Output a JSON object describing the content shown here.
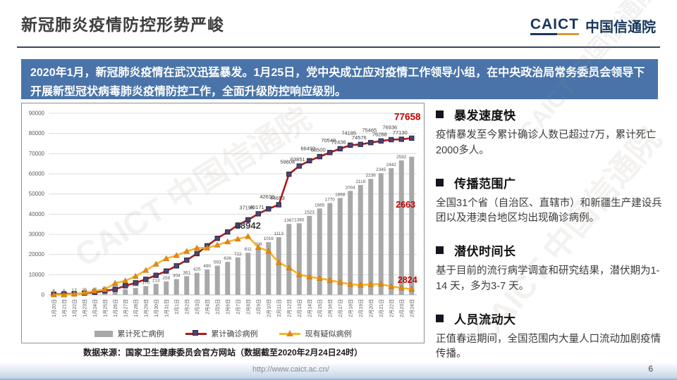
{
  "header": {
    "title": "新冠肺炎疫情防控形势严峻",
    "logo_caict": "CAICT",
    "logo_cn": "中国信通院"
  },
  "banner": {
    "text": "2020年1月，新冠肺炎疫情在武汉迅猛暴发。1月25日，党中央成立应对疫情工作领导小组，在中央政治局常务委员会领导下开展新型冠状病毒肺炎疫情防控工作，全面升级防控响应级别。"
  },
  "bullets": [
    {
      "heading": "暴发速度快",
      "body": "疫情暴发至今累计确诊人数已超过7万，累计死亡2000多人。"
    },
    {
      "heading": "传播范围广",
      "body": "全国31个省（自治区、直辖市）和新疆生产建设兵团以及港澳台地区均出现确诊病例。"
    },
    {
      "heading": "潜伏时间长",
      "body": "基于目前的流行病学调查和研究结果，潜伏期为1-14 天，多为3-7 天。"
    },
    {
      "heading": "人员流动大",
      "body": "正值春运期间，全国范围内大量人口流动加剧疫情传播。"
    }
  ],
  "chart_data": {
    "type": "combo",
    "categories": [
      "1月20日",
      "1月21日",
      "1月22日",
      "1月23日",
      "1月24日",
      "1月25日",
      "1月26日",
      "1月27日",
      "1月28日",
      "1月29日",
      "1月30日",
      "1月31日",
      "2月1日",
      "2月2日",
      "2月3日",
      "2月4日",
      "2月5日",
      "2月6日",
      "2月7日",
      "2月8日",
      "2月9日",
      "2月10日",
      "2月11日",
      "2月12日",
      "2月13日",
      "2月14日",
      "2月15日",
      "2月16日",
      "2月17日",
      "2月18日",
      "2月19日",
      "2月20日",
      "2月21日",
      "2月22日",
      "2月23日",
      "2月24日"
    ],
    "series": [
      {
        "name": "累计死亡病例",
        "kind": "bar",
        "axis": "secondary",
        "color": "#a8a8a8",
        "values": [
          6,
          9,
          17,
          25,
          41,
          56,
          80,
          106,
          132,
          170,
          213,
          259,
          304,
          361,
          425,
          490,
          563,
          636,
          722,
          811,
          908,
          1016,
          1113,
          1367,
          1380,
          1523,
          1665,
          1770,
          1868,
          2004,
          2118,
          2236,
          2345,
          2442,
          2592,
          2663
        ]
      },
      {
        "name": "累计确诊病例",
        "kind": "line",
        "marker": "square",
        "axis": "primary",
        "color": "#ae1a17",
        "marker_color": "#4c4470",
        "values": [
          291,
          440,
          571,
          830,
          1287,
          1975,
          2744,
          4515,
          5974,
          7711,
          9692,
          11791,
          14380,
          17205,
          20438,
          24324,
          28018,
          31161,
          34546,
          37198,
          40171,
          42638,
          44653,
          59804,
          63851,
          66492,
          68500,
          70548,
          72436,
          74185,
          74576,
          75465,
          76288,
          76936,
          77130,
          77658
        ]
      },
      {
        "name": "现有疑似病例",
        "kind": "line",
        "marker": "triangle",
        "axis": "primary",
        "color": "#f3b62c",
        "marker_color": "#e6890f",
        "values": [
          54,
          37,
          393,
          1072,
          1965,
          2684,
          5794,
          6973,
          9239,
          12167,
          15238,
          17988,
          19544,
          21558,
          23214,
          23260,
          24702,
          26359,
          27657,
          28942,
          23589,
          21675,
          16067,
          13435,
          10109,
          8969,
          8228,
          7264,
          6242,
          5248,
          4922,
          5206,
          5365,
          4148,
          3434,
          2824
        ]
      }
    ],
    "primary_axis": {
      "min": 0,
      "max": 90000,
      "step": 10000,
      "side": "left",
      "visible": true
    },
    "secondary_axis": {
      "min": 0,
      "max": 3500,
      "visible": false
    },
    "grid": true,
    "legend_position": "bottom",
    "labels_shown": {
      "deaths": "all",
      "confirmed_from_index": 19,
      "suspected_indices": [
        19,
        35
      ]
    },
    "highlight_color": "#c00000",
    "highlighted_values": {
      "confirmed_last": 77658,
      "deaths_last": 2663,
      "suspected_peak": 28942,
      "suspected_last": 2824
    }
  },
  "source_note": "数据来源：国家卫生健康委员会官方网站（数据截至2020年2月24日24时）",
  "footer": {
    "url": "http://www.caict.ac.cn/",
    "page": "6"
  },
  "watermark": "CAICT 中国信通院",
  "colors": {
    "banner_bg": "#4a74a9",
    "logo_navy": "#17365d",
    "logo_gold": "#d89a2e",
    "highlight_red": "#c00000",
    "bar_gray": "#a8a8a8",
    "confirmed_line": "#ae1a17",
    "confirmed_marker": "#4c4470",
    "suspected_line": "#f3b62c",
    "suspected_marker": "#e6890f"
  }
}
